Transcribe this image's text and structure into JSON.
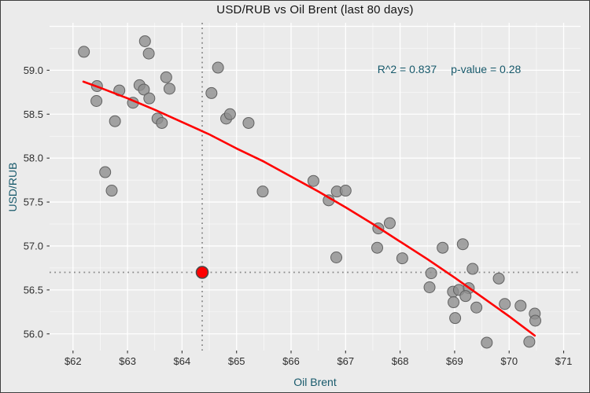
{
  "colors": {
    "figure_bg": "#ebebeb",
    "figure_border": "#3f3f3f",
    "grid": "#ffffff",
    "tick": "#333333",
    "tick_label": "#2e2e2e",
    "axis_title": "#17596b",
    "annotation_text": "#17596b",
    "point_fill": "#8f8f8f",
    "point_stroke": "#616161",
    "trend": "#ff0000",
    "highlight_fill": "#ff0000",
    "highlight_stroke": "#4a4a4a",
    "crosshair": "#8a8a8a"
  },
  "chart_data": {
    "type": "scatter",
    "title": "USD/RUB vs Oil Brent (last 80 days)",
    "xlabel": "Oil Brent",
    "ylabel": "USD/RUB",
    "xlim": [
      61.57,
      71.31
    ],
    "ylim": [
      55.81,
      59.54
    ],
    "grid": "major+minor white gridlines on gray panel, legend none",
    "x_tick_values": [
      62,
      63,
      64,
      65,
      66,
      67,
      68,
      69,
      70,
      71
    ],
    "x_tick_labels": [
      "$62",
      "$63",
      "$64",
      "$65",
      "$66",
      "$67",
      "$68",
      "$69",
      "$70",
      "$71"
    ],
    "y_tick_values": [
      56.0,
      56.5,
      57.0,
      57.5,
      58.0,
      58.5,
      59.0
    ],
    "y_tick_labels": [
      "56.0",
      "56.5",
      "57.0",
      "57.5",
      "58.0",
      "58.5",
      "59.0"
    ],
    "x_grid_major": [
      62,
      63,
      64,
      65,
      66,
      67,
      68,
      69,
      70,
      71
    ],
    "x_grid_minor": [
      62.5,
      63.5,
      64.5,
      65.5,
      66.5,
      67.5,
      68.5,
      69.5,
      70.5
    ],
    "y_grid_major": [
      56.0,
      56.5,
      57.0,
      57.5,
      58.0,
      58.5,
      59.0,
      59.5
    ],
    "y_grid_minor": [
      56.25,
      56.75,
      57.25,
      57.75,
      58.25,
      58.75,
      59.25
    ],
    "annotation": {
      "r2": "R^2 = 0.837",
      "pvalue": "p-value = 0.28"
    },
    "points": [
      [
        62.2,
        59.21
      ],
      [
        63.32,
        59.33
      ],
      [
        63.39,
        59.19
      ],
      [
        64.66,
        59.03
      ],
      [
        62.44,
        58.82
      ],
      [
        63.22,
        58.83
      ],
      [
        63.3,
        58.78
      ],
      [
        62.85,
        58.77
      ],
      [
        63.71,
        58.92
      ],
      [
        63.77,
        58.79
      ],
      [
        63.4,
        58.68
      ],
      [
        63.1,
        58.63
      ],
      [
        62.43,
        58.65
      ],
      [
        64.54,
        58.74
      ],
      [
        63.55,
        58.45
      ],
      [
        63.63,
        58.4
      ],
      [
        62.77,
        58.42
      ],
      [
        64.81,
        58.45
      ],
      [
        64.88,
        58.5
      ],
      [
        65.22,
        58.4
      ],
      [
        62.59,
        57.84
      ],
      [
        62.71,
        57.63
      ],
      [
        65.48,
        57.62
      ],
      [
        66.41,
        57.74
      ],
      [
        66.84,
        57.62
      ],
      [
        67.0,
        57.63
      ],
      [
        66.69,
        57.52
      ],
      [
        66.83,
        56.87
      ],
      [
        67.6,
        57.2
      ],
      [
        67.81,
        57.26
      ],
      [
        67.58,
        56.98
      ],
      [
        68.04,
        56.86
      ],
      [
        68.78,
        56.98
      ],
      [
        69.15,
        57.02
      ],
      [
        69.33,
        56.74
      ],
      [
        68.57,
        56.69
      ],
      [
        69.81,
        56.63
      ],
      [
        68.54,
        56.53
      ],
      [
        68.97,
        56.48
      ],
      [
        69.08,
        56.5
      ],
      [
        69.26,
        56.52
      ],
      [
        69.2,
        56.43
      ],
      [
        68.98,
        56.36
      ],
      [
        69.4,
        56.3
      ],
      [
        69.92,
        56.34
      ],
      [
        70.21,
        56.32
      ],
      [
        69.01,
        56.18
      ],
      [
        70.47,
        56.23
      ],
      [
        70.48,
        56.15
      ],
      [
        69.59,
        55.9
      ],
      [
        70.37,
        55.91
      ]
    ],
    "highlight_point": {
      "x": 64.37,
      "y": 56.7
    },
    "crosshair": {
      "x": 64.37,
      "y": 56.7,
      "style": "dotted"
    },
    "trend_line": {
      "fit": "quadratic",
      "points": [
        [
          62.19,
          58.87
        ],
        [
          62.5,
          58.8
        ],
        [
          63.0,
          58.68
        ],
        [
          63.5,
          58.55
        ],
        [
          64.0,
          58.41
        ],
        [
          64.5,
          58.27
        ],
        [
          65.0,
          58.11
        ],
        [
          65.5,
          57.96
        ],
        [
          66.0,
          57.79
        ],
        [
          66.5,
          57.62
        ],
        [
          67.0,
          57.44
        ],
        [
          67.5,
          57.25
        ],
        [
          68.0,
          57.05
        ],
        [
          68.5,
          56.85
        ],
        [
          69.0,
          56.64
        ],
        [
          69.5,
          56.42
        ],
        [
          70.0,
          56.2
        ],
        [
          70.47,
          55.98
        ]
      ]
    }
  }
}
